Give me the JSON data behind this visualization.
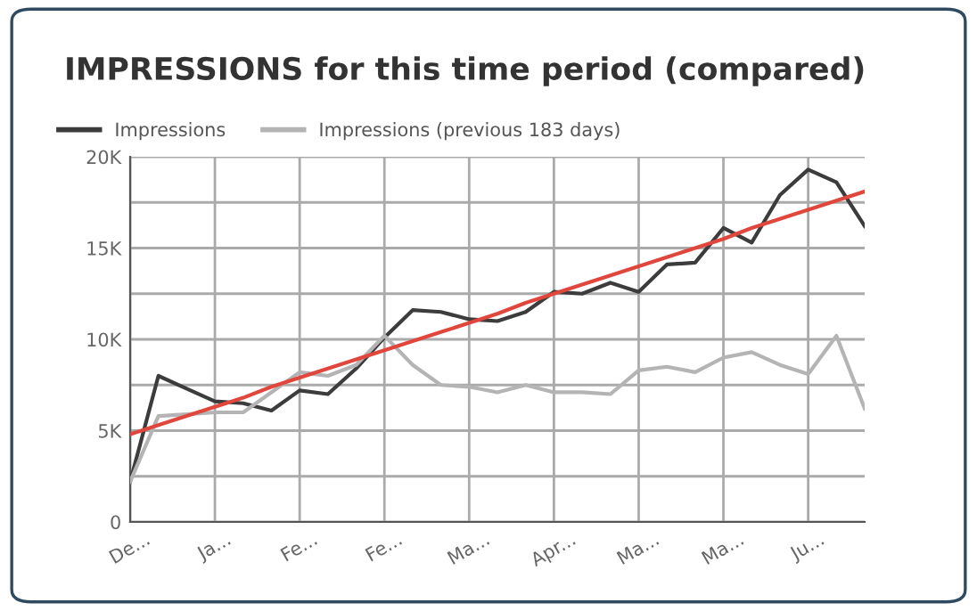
{
  "chart_data": {
    "type": "line",
    "title": "IMPRESSIONS for this time period (compared)",
    "categories": [
      "De...",
      null,
      null,
      "Ja...",
      null,
      null,
      "Fe...",
      null,
      null,
      "Fe...",
      null,
      null,
      "Ma...",
      null,
      null,
      "Apr...",
      null,
      null,
      "Ma...",
      null,
      null,
      "Ma...",
      null,
      null,
      "Ju...",
      null,
      null
    ],
    "series": [
      {
        "name": "Impressions",
        "color": "#3c3c3c",
        "values": [
          2200,
          8000,
          7300,
          6600,
          6500,
          6100,
          7200,
          7000,
          8400,
          10100,
          11600,
          11500,
          11100,
          11000,
          11500,
          12600,
          12500,
          13100,
          12600,
          14100,
          14200,
          16100,
          15300,
          17900,
          19300,
          18600,
          16200
        ]
      },
      {
        "name": "Impressions (previous 183 days)",
        "color": "#b4b4b4",
        "values": [
          2200,
          5800,
          5900,
          6000,
          6000,
          7100,
          8200,
          8000,
          8600,
          10200,
          8600,
          7500,
          7400,
          7100,
          7500,
          7100,
          7100,
          7000,
          8300,
          8500,
          8200,
          9000,
          9300,
          8600,
          8100,
          10200,
          6200
        ]
      },
      {
        "color": "#e0463c",
        "values": [
          4800,
          5300,
          5800,
          6300,
          6800,
          7400,
          7900,
          8400,
          8900,
          9400,
          9900,
          10400,
          10900,
          11400,
          12000,
          12500,
          13000,
          13500,
          14000,
          14500,
          15000,
          15500,
          16100,
          16600,
          17100,
          17600,
          18100
        ]
      }
    ],
    "ylim": [
      0,
      20000
    ],
    "yticks": [
      0,
      {
        "value": 2500,
        "label": null
      },
      {
        "value": 5000,
        "label": "5K"
      },
      {
        "value": 7500,
        "label": null
      },
      {
        "value": 10000,
        "label": "10K"
      },
      {
        "value": 12500,
        "label": null
      },
      {
        "value": 15000,
        "label": "15K"
      },
      {
        "value": 17500,
        "label": null
      },
      {
        "value": 20000,
        "label": "20K"
      }
    ],
    "grid": true,
    "legend": "top left",
    "marker": "none",
    "line_style": "solid"
  }
}
